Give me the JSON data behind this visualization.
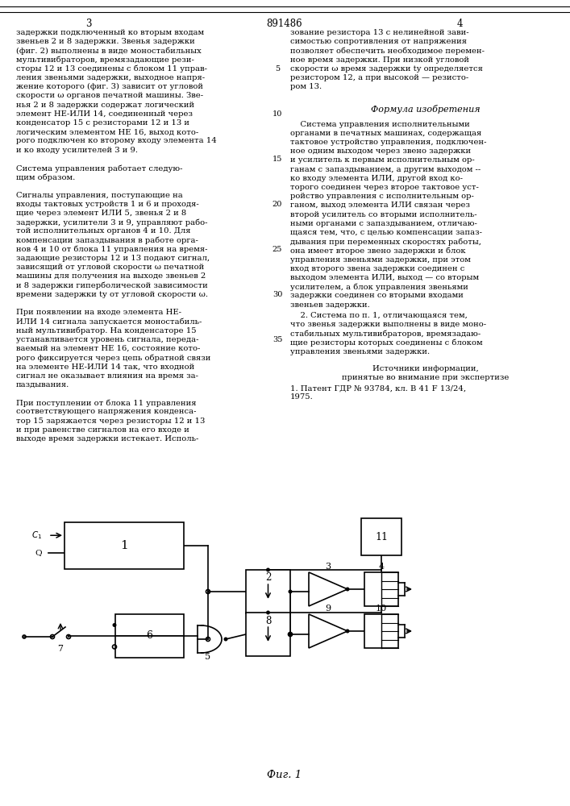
{
  "title_number": "891486",
  "col_left": "3",
  "col_right": "4",
  "left_text": [
    "задержки подключенный ко вторым входам",
    "звеньев 2 и 8 задержки. Звенья задержки",
    "(фиг. 2) выполнены в виде моностабильных",
    "мультивибраторов, времязадающие рези-",
    "сторы 12 и 13 соединены с блоком 11 управ-",
    "ления звеньями задержки, выходное напря-",
    "жение которого (фиг. 3) зависит от угловой",
    "скорости ω органов печатной машины. Зве-",
    "нья 2 и 8 задержки содержат логический",
    "элемент НЕ-ИЛИ 14, соединенный через",
    "конденсатор 15 с резисторами 12 и 13 и",
    "логическим элементом НЕ 16, выход кото-",
    "рого подключен ко второму входу элемента 14",
    "и ко входу усилителей 3 и 9.",
    " ",
    "Система управления работает следую-",
    "щим образом.",
    " ",
    "Сигналы управления, поступающие на",
    "входы тактовых устройств 1 и 6 и проходя-",
    "щие через элемент ИЛИ 5, звенья 2 и 8",
    "задержки, усилители 3 и 9, управляют рабо-",
    "той исполнительных органов 4 и 10. Для",
    "компенсации запаздывания в работе орга-",
    "нов 4 и 10 от блока 11 управления на время-",
    "задающие резисторы 12 и 13 подают сигнал,",
    "зависящий от угловой скорости ω печатной",
    "машины для получения на выходе звеньев 2",
    "и 8 задержки гиперболической зависимости",
    "времени задержки tу от угловой скорости ω.",
    " ",
    "При появлении на входе элемента НЕ-",
    "ИЛИ 14 сигнала запускается моностабиль-",
    "ный мультивибратор. На конденсаторе 15",
    "устанавливается уровень сигнала, переда-",
    "ваемый на элемент НЕ 16, состояние кото-",
    "рого фиксируется через цепь обратной связи",
    "на элементе НЕ-ИЛИ 14 так, что входной",
    "сигнал не оказывает влияния на время за-",
    "паздывания.",
    " ",
    "При поступлении от блока 11 управления",
    "соответствующего напряжения конденса-",
    "тор 15 заряжается через резисторы 12 и 13",
    "и при равенстве сигналов на его входе и",
    "выходе время задержки истекает. Исполь-"
  ],
  "right_text_top": [
    "зование резистора 13 с нелинейной зави-",
    "симостью сопротивления от напряжения",
    "позволяет обеспечить необходимое перемен-",
    "ное время задержки. При низкой угловой",
    "скорости ω время задержки tу определяется",
    "резистором 12, а при высокой — резисто-",
    "ром 13."
  ],
  "formula_title": "Формула изобретения",
  "formula_text": [
    "    Система управления исполнительными",
    "органами в печатных машинах, содержащая",
    "тактовое устройство управления, подключен-",
    "ное одним выходом через звено задержки",
    "и усилитель к первым исполнительным ор-",
    "ганам с запаздыванием, а другим выходом --",
    "ко входу элемента ИЛИ, другой вход ко-",
    "торого соединен через второе тактовое уст-",
    "ройство управления с исполнительным ор-",
    "ганом, выход элемента ИЛИ связан через",
    "второй усилитель со вторыми исполнитель-",
    "ными органами с запаздыванием, отличаю-",
    "щаяся тем, что, с целью компенсации запаз-",
    "дывания при переменных скоростях работы,",
    "она имеет второе звено задержки и блок",
    "управления звеньями задержки, при этом",
    "вход второго звена задержки соединен с",
    "выходом элемента ИЛИ, выход — со вторым",
    "усилителем, а блок управления звеньями",
    "задержки соединен со вторыми входами",
    "звеньев задержки."
  ],
  "claim2_text": [
    "    2. Система по п. 1, отличающаяся тем,",
    "что звенья задержки выполнены в виде моно-",
    "стабильных мультивибраторов, времязадаю-",
    "щие резисторы которых соединены с блоком",
    "управления звеньями задержки."
  ],
  "sources_title": "Источники информации,",
  "sources_sub": "принятые во внимание при экспертизе",
  "sources_text": [
    "1. Патент ГДР № 93784, кл. В 41 F 13/24,",
    "1975."
  ],
  "fig_label": "Фиг. 1",
  "bg_color": "#ffffff",
  "text_color": "#000000"
}
